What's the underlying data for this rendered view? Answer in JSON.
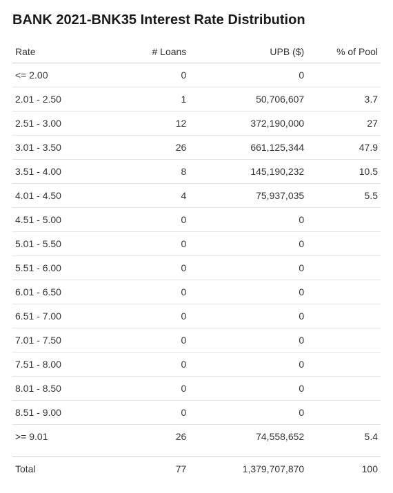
{
  "title": "BANK 2021-BNK35 Interest Rate Distribution",
  "columns": {
    "rate": "Rate",
    "loans": "# Loans",
    "upb": "UPB ($)",
    "pct": "% of Pool"
  },
  "rows": [
    {
      "rate": "<= 2.00",
      "loans": "0",
      "upb": "0",
      "pct": ""
    },
    {
      "rate": "2.01 - 2.50",
      "loans": "1",
      "upb": "50,706,607",
      "pct": "3.7"
    },
    {
      "rate": "2.51 - 3.00",
      "loans": "12",
      "upb": "372,190,000",
      "pct": "27"
    },
    {
      "rate": "3.01 - 3.50",
      "loans": "26",
      "upb": "661,125,344",
      "pct": "47.9"
    },
    {
      "rate": "3.51 - 4.00",
      "loans": "8",
      "upb": "145,190,232",
      "pct": "10.5"
    },
    {
      "rate": "4.01 - 4.50",
      "loans": "4",
      "upb": "75,937,035",
      "pct": "5.5"
    },
    {
      "rate": "4.51 - 5.00",
      "loans": "0",
      "upb": "0",
      "pct": ""
    },
    {
      "rate": "5.01 - 5.50",
      "loans": "0",
      "upb": "0",
      "pct": ""
    },
    {
      "rate": "5.51 - 6.00",
      "loans": "0",
      "upb": "0",
      "pct": ""
    },
    {
      "rate": "6.01 - 6.50",
      "loans": "0",
      "upb": "0",
      "pct": ""
    },
    {
      "rate": "6.51 - 7.00",
      "loans": "0",
      "upb": "0",
      "pct": ""
    },
    {
      "rate": "7.01 - 7.50",
      "loans": "0",
      "upb": "0",
      "pct": ""
    },
    {
      "rate": "7.51 - 8.00",
      "loans": "0",
      "upb": "0",
      "pct": ""
    },
    {
      "rate": "8.01 - 8.50",
      "loans": "0",
      "upb": "0",
      "pct": ""
    },
    {
      "rate": "8.51 - 9.00",
      "loans": "0",
      "upb": "0",
      "pct": ""
    },
    {
      "rate": ">= 9.01",
      "loans": "26",
      "upb": "74,558,652",
      "pct": "5.4"
    }
  ],
  "totals": {
    "label": "Total",
    "loans": "77",
    "upb": "1,379,707,870",
    "pct": "100"
  }
}
